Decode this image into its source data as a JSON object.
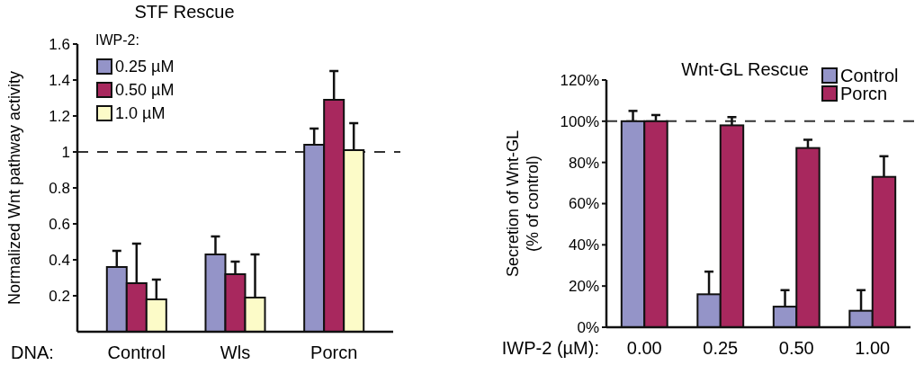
{
  "chart_data": [
    {
      "type": "bar",
      "title": "STF Rescue",
      "xlabel": "DNA:",
      "ylabel": "Normalized Wnt pathway activity",
      "legend_title": "IWP-2:",
      "categories": [
        "Control",
        "Wls",
        "Porcn"
      ],
      "series": [
        {
          "name": "0.25 µM",
          "color": "#9494c8",
          "values": [
            0.36,
            0.43,
            1.04
          ],
          "errors": [
            [
              0.36,
              0.45
            ],
            [
              0.43,
              0.53
            ],
            [
              1.04,
              1.13
            ]
          ]
        },
        {
          "name": "0.50 µM",
          "color": "#a8285e",
          "values": [
            0.27,
            0.32,
            1.29
          ],
          "errors": [
            [
              0.27,
              0.49
            ],
            [
              0.32,
              0.39
            ],
            [
              1.29,
              1.45
            ]
          ]
        },
        {
          "name": "1.0 µM",
          "color": "#fcfbc8",
          "values": [
            0.18,
            0.19,
            1.01
          ],
          "errors": [
            [
              0.18,
              0.29
            ],
            [
              0.19,
              0.43
            ],
            [
              1.01,
              1.16
            ]
          ]
        }
      ],
      "ylim": [
        0,
        1.6
      ],
      "yticks": [
        0.2,
        0.4,
        0.6,
        0.8,
        1,
        1.2,
        1.4,
        1.6
      ],
      "ref_lines": [
        {
          "axis": "y",
          "value": 1,
          "line_style": "dashed"
        }
      ],
      "legend": "top left",
      "grid": false
    },
    {
      "type": "bar",
      "title": "Wnt-GL Rescue",
      "xlabel": "IWP-2 (µM):",
      "ylabel": "Secretion of Wnt-GL\n(% of control)",
      "categories": [
        "0.00",
        "0.25",
        "0.50",
        "1.00"
      ],
      "series": [
        {
          "name": "Control",
          "color": "#9494c8",
          "values": [
            100,
            16,
            10,
            8
          ],
          "errors": [
            [
              100,
              105
            ],
            [
              16,
              27
            ],
            [
              10,
              18
            ],
            [
              8,
              18
            ]
          ]
        },
        {
          "name": "Porcn",
          "color": "#a8285e",
          "values": [
            100,
            98,
            87,
            73
          ],
          "errors": [
            [
              100,
              103
            ],
            [
              98,
              102
            ],
            [
              87,
              91
            ],
            [
              73,
              83
            ]
          ]
        }
      ],
      "ylim": [
        0,
        120
      ],
      "yticks": [
        {
          "value": 0,
          "label": "0%"
        },
        {
          "value": 20,
          "label": "20%"
        },
        {
          "value": 40,
          "label": "40%"
        },
        {
          "value": 60,
          "label": "60%"
        },
        {
          "value": 80,
          "label": "80%"
        },
        {
          "value": 100,
          "label": "100%"
        },
        {
          "value": 120,
          "label": "120%"
        }
      ],
      "ref_lines": [
        {
          "axis": "y",
          "value": 100,
          "line_style": "dashed"
        }
      ],
      "legend": "top right",
      "grid": false
    }
  ]
}
